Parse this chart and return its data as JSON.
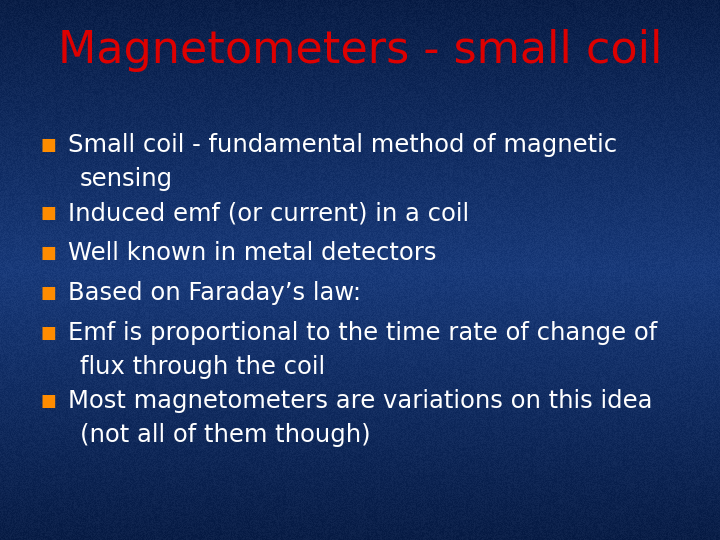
{
  "title": "Magnetometers - small coil",
  "title_color": "#dd0000",
  "title_fontsize": 32,
  "bullet_color": "#ff8c00",
  "text_color": "#ffffff",
  "text_fontsize": 17.5,
  "bg_top": "#0a1a3a",
  "bg_mid": "#1a4a9a",
  "bg_bot": "#0a1a40",
  "bullet_items": [
    [
      "Small coil - fundamental method of magnetic",
      "sensing"
    ],
    [
      "Induced emf (or current) in a coil"
    ],
    [
      "Well known in metal detectors"
    ],
    [
      "Based on Faraday’s law:"
    ],
    [
      "Emf is proportional to the time rate of change of",
      "flux through the coil"
    ],
    [
      "Most magnetometers are variations on this idea",
      "(not all of them though)"
    ]
  ]
}
